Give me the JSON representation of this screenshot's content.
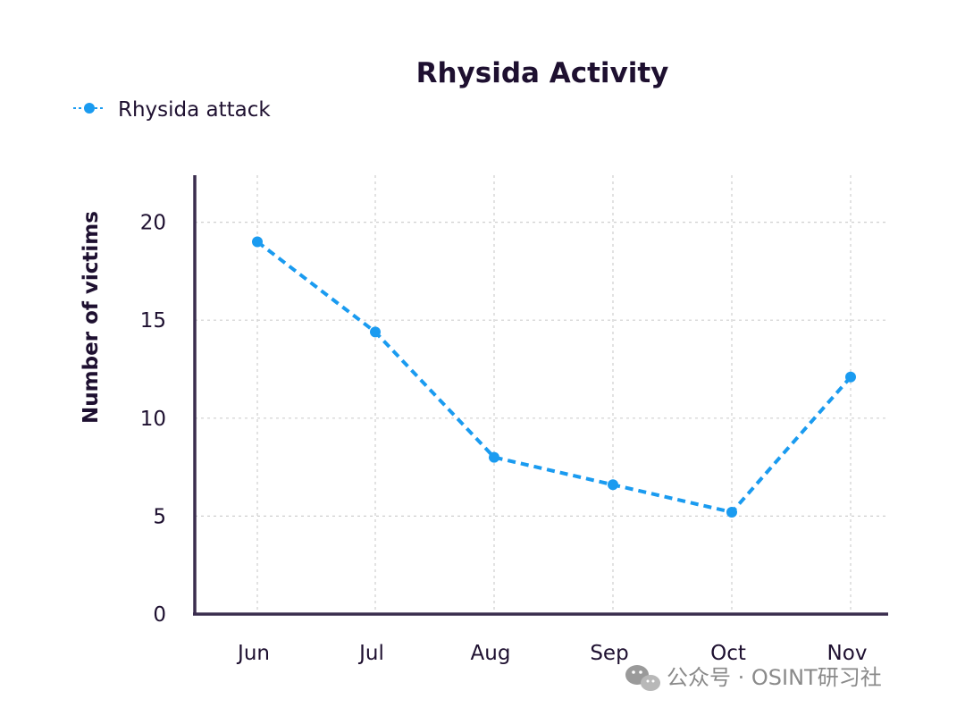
{
  "chart_data": {
    "type": "line",
    "title": "Rhysida Activity",
    "xlabel": "",
    "ylabel": "Number of victims",
    "categories": [
      "Jun",
      "Jul",
      "Aug",
      "Sep",
      "Oct",
      "Nov"
    ],
    "series": [
      {
        "name": "Rhysida attack",
        "values": [
          19,
          14.4,
          8,
          6.6,
          5.2,
          12.1
        ],
        "color": "#1a9bf0",
        "line_style": "dashed",
        "marker": "circle"
      }
    ],
    "yticks": [
      0,
      5,
      10,
      15,
      20
    ],
    "ylim": [
      0,
      22.4
    ],
    "grid": true,
    "legend_position": "top-left"
  },
  "colors": {
    "text": "#1e1030",
    "axis": "#3a2d4e",
    "grid": "#cfcfcf",
    "series": "#1a9bf0"
  },
  "watermark": {
    "text": "公众号 · OSINT研习社",
    "icon": "wechat-icon"
  }
}
